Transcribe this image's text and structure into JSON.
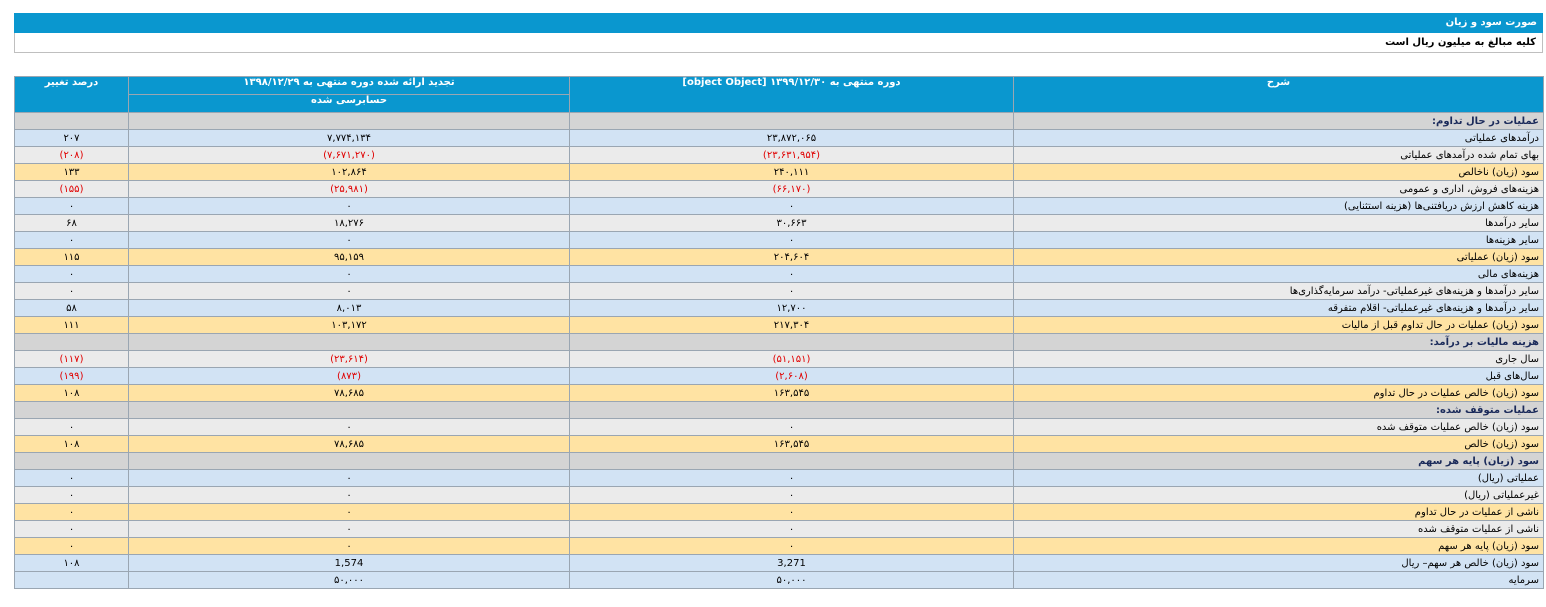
{
  "header": {
    "title": "صورت سود و زیان",
    "subtitle": "کلیه مبالغ به میلیون ریال است"
  },
  "table": {
    "columns": {
      "desc": "شرح",
      "current": "دوره منتهی به ۱۳۹۹/۱۲/۳۰ [object Object]",
      "restated": "تجدید ارائه شده دوره منتهی به ۱۳۹۸/۱۲/۲۹",
      "restated_sub": "حسابرسی شده",
      "change": "درصد تغییر"
    },
    "rows": [
      {
        "type": "section",
        "label": "عملیات در حال تداوم:"
      },
      {
        "type": "data",
        "color": "blue",
        "label": "درآمدهای عملیاتی",
        "current": "۲۳,۸۷۲,۰۶۵",
        "restated": "۷,۷۷۴,۱۳۴",
        "change": "۲۰۷",
        "neg": false
      },
      {
        "type": "data",
        "color": "gray",
        "label": "بهای تمام شده درآمدهای عملیاتی",
        "current": "(۲۳,۶۳۱,۹۵۴)",
        "restated": "(۷,۶۷۱,۲۷۰)",
        "change": "(۲۰۸)",
        "neg": true
      },
      {
        "type": "data",
        "color": "yellow",
        "label": "سود (زیان) ناخالص",
        "current": "۲۴۰,۱۱۱",
        "restated": "۱۰۲,۸۶۴",
        "change": "۱۳۳",
        "neg": false
      },
      {
        "type": "data",
        "color": "gray",
        "label": "هزینه‌های فروش، اداری و عمومی",
        "current": "(۶۶,۱۷۰)",
        "restated": "(۲۵,۹۸۱)",
        "change": "(۱۵۵)",
        "neg": true
      },
      {
        "type": "data",
        "color": "blue",
        "label": "هزینه کاهش ارزش دریافتنی‌ها (هزینه استثنایی)",
        "current": "۰",
        "restated": "۰",
        "change": "۰",
        "neg": false
      },
      {
        "type": "data",
        "color": "gray",
        "label": "سایر درآمدها",
        "current": "۳۰,۶۶۳",
        "restated": "۱۸,۲۷۶",
        "change": "۶۸",
        "neg": false
      },
      {
        "type": "data",
        "color": "blue",
        "label": "سایر هزینه‌ها",
        "current": "۰",
        "restated": "۰",
        "change": "۰",
        "neg": false
      },
      {
        "type": "data",
        "color": "yellow",
        "label": "سود (زیان) عملیاتی",
        "current": "۲۰۴,۶۰۴",
        "restated": "۹۵,۱۵۹",
        "change": "۱۱۵",
        "neg": false
      },
      {
        "type": "data",
        "color": "blue",
        "label": "هزینه‌های مالی",
        "current": "۰",
        "restated": "۰",
        "change": "۰",
        "neg": false
      },
      {
        "type": "data",
        "color": "gray",
        "label": "سایر درآمدها و هزینه‌های غیرعملیاتی- درآمد سرمایه‌گذاری‌ها",
        "current": "۰",
        "restated": "۰",
        "change": "۰",
        "neg": false
      },
      {
        "type": "data",
        "color": "blue",
        "label": "سایر درآمدها و هزینه‌های غیرعملیاتی- اقلام متفرقه",
        "current": "۱۲,۷۰۰",
        "restated": "۸,۰۱۳",
        "change": "۵۸",
        "neg": false
      },
      {
        "type": "data",
        "color": "yellow",
        "label": "سود (زیان) عملیات در حال تداوم قبل از مالیات",
        "current": "۲۱۷,۳۰۴",
        "restated": "۱۰۳,۱۷۲",
        "change": "۱۱۱",
        "neg": false
      },
      {
        "type": "section",
        "label": "هزینه مالیات بر درآمد:"
      },
      {
        "type": "data",
        "color": "gray",
        "label": "سال جاری",
        "current": "(۵۱,۱۵۱)",
        "restated": "(۲۳,۶۱۴)",
        "change": "(۱۱۷)",
        "neg": true
      },
      {
        "type": "data",
        "color": "blue",
        "label": "سال‌های قبل",
        "current": "(۲,۶۰۸)",
        "restated": "(۸۷۳)",
        "change": "(۱۹۹)",
        "neg": true
      },
      {
        "type": "data",
        "color": "yellow",
        "label": "سود (زیان) خالص عملیات در حال تداوم",
        "current": "۱۶۳,۵۴۵",
        "restated": "۷۸,۶۸۵",
        "change": "۱۰۸",
        "neg": false
      },
      {
        "type": "section",
        "label": "عملیات متوقف شده:"
      },
      {
        "type": "data",
        "color": "gray",
        "label": "سود (زیان) خالص عملیات متوقف شده",
        "current": "۰",
        "restated": "۰",
        "change": "۰",
        "neg": false
      },
      {
        "type": "data",
        "color": "yellow",
        "label": "سود (زیان) خالص",
        "current": "۱۶۳,۵۴۵",
        "restated": "۷۸,۶۸۵",
        "change": "۱۰۸",
        "neg": false
      },
      {
        "type": "section",
        "label": "سود (زیان) پایه هر سهم"
      },
      {
        "type": "data",
        "color": "blue",
        "label": "عملیاتی (ریال)",
        "current": "۰",
        "restated": "۰",
        "change": "۰",
        "neg": false
      },
      {
        "type": "data",
        "color": "gray",
        "label": "غیرعملیاتی (ریال)",
        "current": "۰",
        "restated": "۰",
        "change": "۰",
        "neg": false
      },
      {
        "type": "data",
        "color": "yellow",
        "label": "ناشی از عملیات در حال تداوم",
        "current": "۰",
        "restated": "۰",
        "change": "۰",
        "neg": false
      },
      {
        "type": "data",
        "color": "gray",
        "label": "ناشی از عملیات متوقف شده",
        "current": "۰",
        "restated": "۰",
        "change": "۰",
        "neg": false
      },
      {
        "type": "data",
        "color": "yellow",
        "label": "سود (زیان) پایه هر سهم",
        "current": "۰",
        "restated": "۰",
        "change": "۰",
        "neg": false
      },
      {
        "type": "data",
        "color": "blue",
        "label": "سود (زیان) خالص هر سهم– ریال",
        "current": "3,271",
        "restated": "1,574",
        "change": "۱۰۸",
        "neg": false
      },
      {
        "type": "data",
        "color": "blue",
        "label": "سرمایه",
        "current": "۵۰,۰۰۰",
        "restated": "۵۰,۰۰۰",
        "change": "",
        "neg": false
      }
    ]
  }
}
